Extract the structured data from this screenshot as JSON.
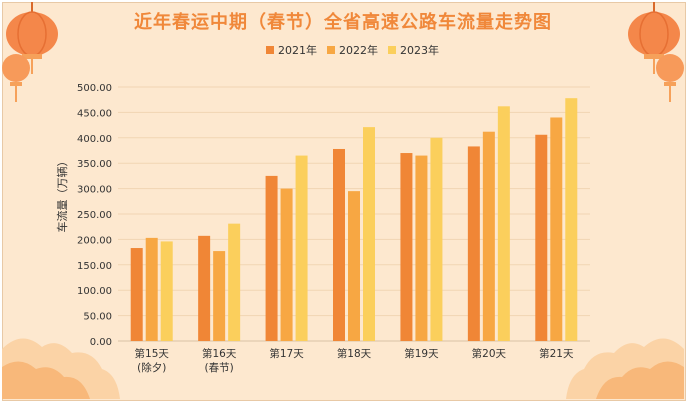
{
  "colors": {
    "s2021": "#f08636",
    "s2022": "#f7a743",
    "s2023": "#fbcf5c",
    "title": "#f0883a",
    "background": "#fde8cf"
  },
  "chart_data": {
    "type": "bar",
    "title": "近年春运中期（春节）全省高速公路车流量走势图",
    "ylabel": "车流量（万辆）",
    "xlabel": "",
    "ylim": [
      0,
      500
    ],
    "ytick_step": 50,
    "yticks": [
      "0.00",
      "50.00",
      "100.00",
      "150.00",
      "200.00",
      "250.00",
      "300.00",
      "350.00",
      "400.00",
      "450.00",
      "500.00"
    ],
    "categories": [
      [
        "第15天",
        "(除夕)"
      ],
      [
        "第16天",
        "(春节)"
      ],
      [
        "第17天"
      ],
      [
        "第18天"
      ],
      [
        "第19天"
      ],
      [
        "第20天"
      ],
      [
        "第21天"
      ]
    ],
    "series": [
      {
        "name": "2021年",
        "values": [
          183,
          207,
          325,
          378,
          370,
          383,
          406
        ]
      },
      {
        "name": "2022年",
        "values": [
          203,
          177,
          300,
          295,
          365,
          412,
          440
        ]
      },
      {
        "name": "2023年",
        "values": [
          196,
          231,
          365,
          421,
          400,
          462,
          478
        ]
      }
    ],
    "grid": true,
    "legend": "top"
  }
}
